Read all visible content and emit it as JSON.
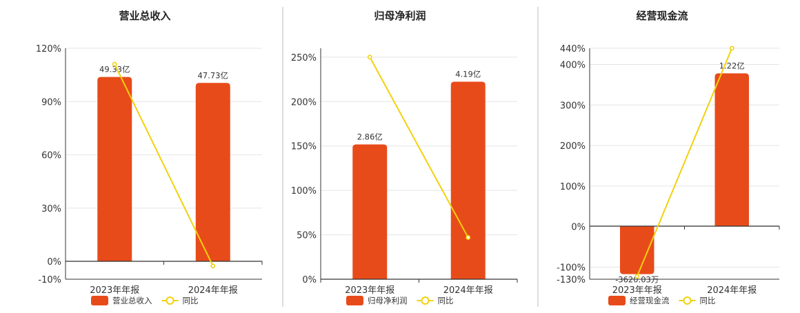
{
  "colors": {
    "bar": "#E84B1A",
    "line": "#F2D10C",
    "grid": "#E5E5E5",
    "axis": "#333333",
    "divider": "#BBBBBB"
  },
  "chart_data": [
    {
      "type": "bar",
      "title": "营业总收入",
      "categories": [
        "2023年年报",
        "2024年年报"
      ],
      "series": [
        {
          "name": "营业总收入",
          "type": "bar",
          "values": [
            49.33,
            47.73
          ],
          "labels": [
            "49.33亿",
            "47.73亿"
          ],
          "unit": "亿"
        },
        {
          "name": "同比",
          "type": "line",
          "values": [
            111,
            -2.5
          ],
          "unit": "%"
        }
      ],
      "bar_axis_max": 57,
      "y_ticks": [
        "120%",
        "90%",
        "60%",
        "30%",
        "0%",
        "-10%"
      ],
      "ylim": [
        -10,
        120
      ],
      "grid": true,
      "legend_position": "bottom"
    },
    {
      "type": "bar",
      "title": "归母净利润",
      "categories": [
        "2023年年报",
        "2024年年报"
      ],
      "series": [
        {
          "name": "归母净利润",
          "type": "bar",
          "values": [
            2.86,
            4.19
          ],
          "labels": [
            "2.86亿",
            "4.19亿"
          ],
          "unit": "亿"
        },
        {
          "name": "同比",
          "type": "line",
          "values": [
            250,
            47
          ],
          "unit": "%"
        }
      ],
      "bar_axis_max": 4.9,
      "y_ticks": [
        "250%",
        "200%",
        "150%",
        "100%",
        "50%",
        "0%"
      ],
      "ylim": [
        0,
        260
      ],
      "grid": true,
      "legend_position": "bottom"
    },
    {
      "type": "bar",
      "title": "经营现金流",
      "categories": [
        "2023年年报",
        "2024年年报"
      ],
      "series": [
        {
          "name": "经营现金流",
          "type": "bar",
          "values": [
            -0.362003,
            1.22
          ],
          "labels": [
            "-3620.03万",
            "1.22亿"
          ],
          "unit": "亿"
        },
        {
          "name": "同比",
          "type": "line",
          "values": [
            -123,
            440
          ],
          "unit": "%"
        }
      ],
      "bar_axis_range": [
        -0.4,
        1.42
      ],
      "y_ticks": [
        "440%",
        "400%",
        "300%",
        "200%",
        "100%",
        "0%",
        "-100%",
        "-130%"
      ],
      "ylim": [
        -130,
        440
      ],
      "grid": true,
      "legend_position": "bottom"
    }
  ]
}
